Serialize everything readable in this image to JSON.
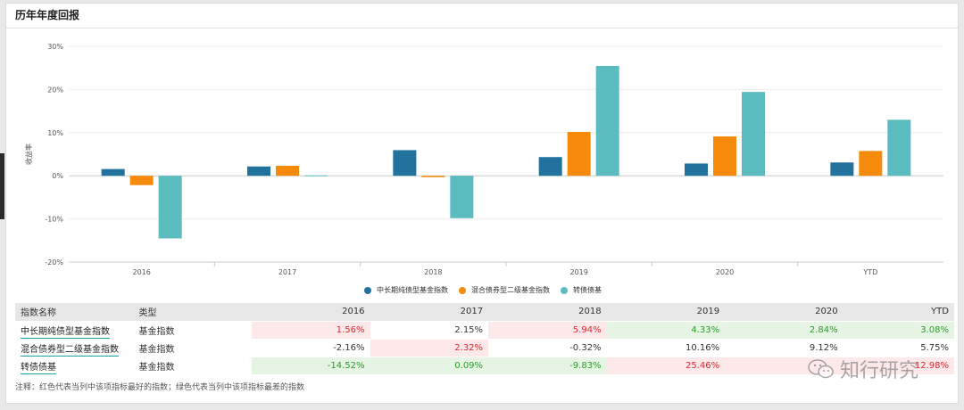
{
  "header": {
    "title": "历年年度回报"
  },
  "chart_data": {
    "type": "bar",
    "title": "",
    "xlabel": "",
    "ylabel": "收益率",
    "ylim": [
      -20,
      30
    ],
    "yticks": [
      30,
      20,
      10,
      0,
      -10,
      -20
    ],
    "ytick_labels": [
      "30%",
      "20%",
      "10%",
      "0%",
      "-10%",
      "-20%"
    ],
    "categories": [
      "2016",
      "2017",
      "2018",
      "2019",
      "2020",
      "YTD"
    ],
    "legend_position": "bottom",
    "series": [
      {
        "name": "中长期纯债型基金指数",
        "color": "#21729c",
        "values": [
          1.56,
          2.15,
          5.94,
          4.33,
          2.84,
          3.08
        ]
      },
      {
        "name": "混合债券型二级基金指数",
        "color": "#f58a0b",
        "values": [
          -2.16,
          2.32,
          -0.32,
          10.16,
          9.12,
          5.75
        ]
      },
      {
        "name": "转债债基",
        "color": "#5bbcbf",
        "values": [
          -14.52,
          0.09,
          -9.83,
          25.46,
          19.43,
          12.98
        ]
      }
    ]
  },
  "table": {
    "headers": [
      "指数名称",
      "类型",
      "2016",
      "2017",
      "2018",
      "2019",
      "2020",
      "YTD"
    ],
    "rows": [
      {
        "name": "中长期纯债型基金指数",
        "type": "基金指数",
        "cells": [
          {
            "v": "1.56%",
            "c": "r"
          },
          {
            "v": "2.15%",
            "c": "w"
          },
          {
            "v": "5.94%",
            "c": "r"
          },
          {
            "v": "4.33%",
            "c": "g"
          },
          {
            "v": "2.84%",
            "c": "g"
          },
          {
            "v": "3.08%",
            "c": "g"
          }
        ]
      },
      {
        "name": "混合债券型二级基金指数",
        "type": "基金指数",
        "cells": [
          {
            "v": "-2.16%",
            "c": "w"
          },
          {
            "v": "2.32%",
            "c": "r"
          },
          {
            "v": "-0.32%",
            "c": "w"
          },
          {
            "v": "10.16%",
            "c": "w"
          },
          {
            "v": "9.12%",
            "c": "w"
          },
          {
            "v": "5.75%",
            "c": "w"
          }
        ]
      },
      {
        "name": "转债债基",
        "type": "基金指数",
        "cells": [
          {
            "v": "-14.52%",
            "c": "g"
          },
          {
            "v": "0.09%",
            "c": "g"
          },
          {
            "v": "-9.83%",
            "c": "g"
          },
          {
            "v": "25.46%",
            "c": "r"
          },
          {
            "v": "",
            "c": "r"
          },
          {
            "v": "12.98%",
            "c": "r"
          }
        ]
      }
    ]
  },
  "note": "注释：红色代表当列中该项指标最好的指数；绿色代表当列中该项指标最差的指数",
  "watermark": {
    "text": "知行研究",
    "icon": "wechat-icon"
  }
}
